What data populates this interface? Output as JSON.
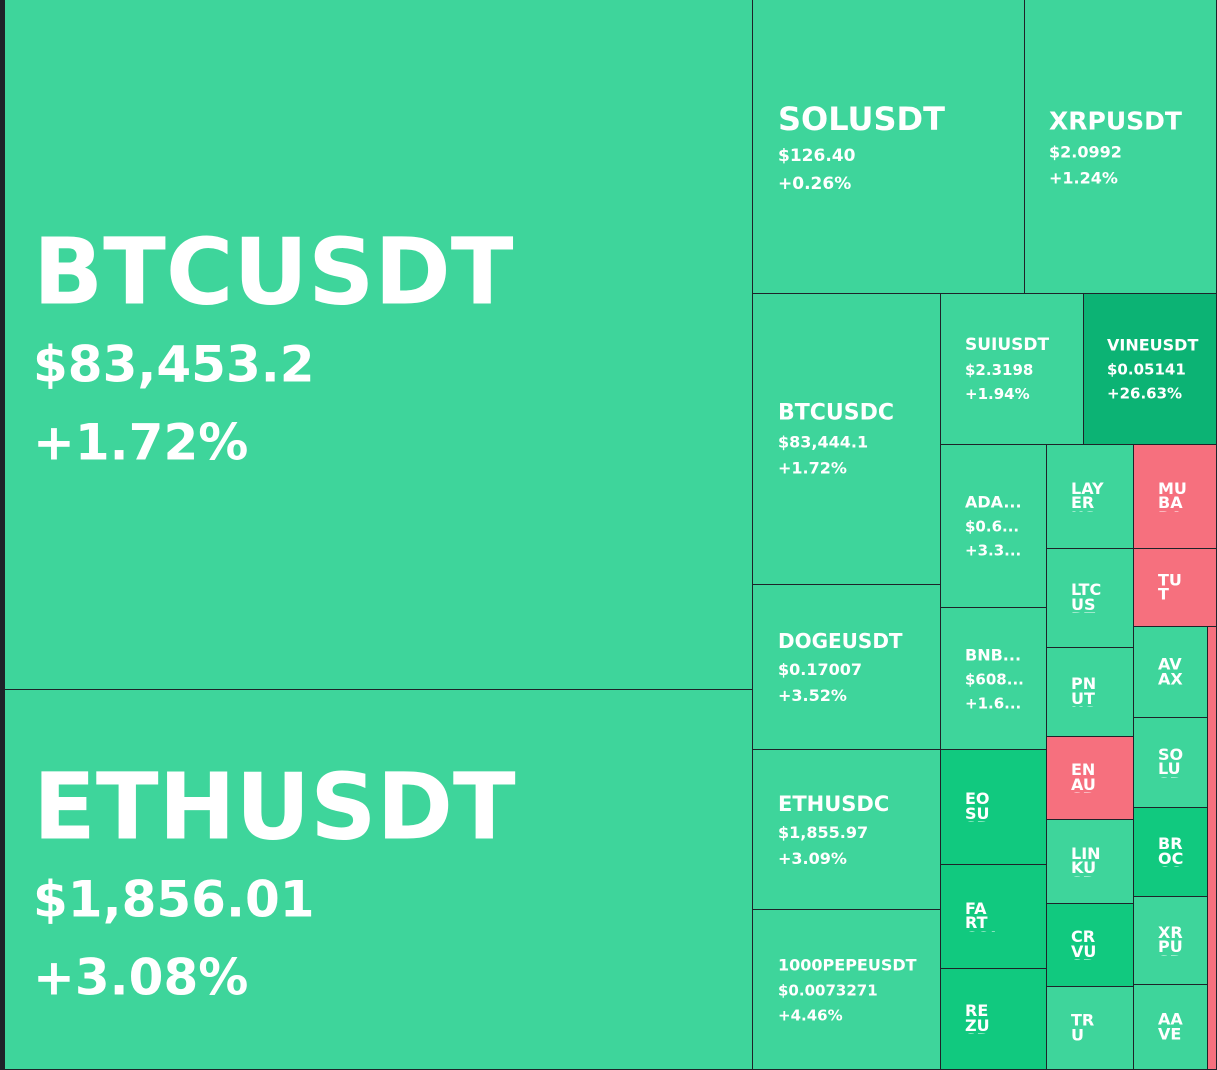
{
  "colors": {
    "up": "#3ed59b",
    "up_medium": "#11c97f",
    "up_strong": "#0cb374",
    "down": "#f6707e",
    "border": "#1e2329",
    "text": "#ffffff"
  },
  "tiles": [
    {
      "key": "btcusdt",
      "symbol": "BTCUSDT",
      "price": "$83,453.2",
      "change": "+1.72%",
      "color": "up"
    },
    {
      "key": "ethusdt",
      "symbol": "ETHUSDT",
      "price": "$1,856.01",
      "change": "+3.08%",
      "color": "up"
    },
    {
      "key": "solusdt",
      "symbol": "SOLUSDT",
      "price": "$126.40",
      "change": "+0.26%",
      "color": "up"
    },
    {
      "key": "xrpusdt",
      "symbol": "XRPUSDT",
      "price": "$2.0992",
      "change": "+1.24%",
      "color": "up"
    },
    {
      "key": "btcusdc",
      "symbol": "BTCUSDC",
      "price": "$83,444.1",
      "change": "+1.72%",
      "color": "up"
    },
    {
      "key": "suiusdt",
      "symbol": "SUIUSDT",
      "price": "$2.3198",
      "change": "+1.94%",
      "color": "up"
    },
    {
      "key": "vineusdt",
      "symbol": "VINEUSDT",
      "price": "$0.05141",
      "change": "+26.63%",
      "color": "up_strong"
    },
    {
      "key": "dogeusdt",
      "symbol": "DOGEUSDT",
      "price": "$0.17007",
      "change": "+3.52%",
      "color": "up"
    },
    {
      "key": "ethusdc",
      "symbol": "ETHUSDC",
      "price": "$1,855.97",
      "change": "+3.09%",
      "color": "up"
    },
    {
      "key": "1000pepeusdt",
      "symbol": "1000PEPEUSDT",
      "price": "$0.0073271",
      "change": "+4.46%",
      "color": "up"
    },
    {
      "key": "adausdt",
      "symbol": "ADA...",
      "price": "$0.6...",
      "change": "+3.3...",
      "color": "up"
    },
    {
      "key": "bnbusdt",
      "symbol": "BNB...",
      "price": "$608...",
      "change": "+1.6...",
      "color": "up"
    },
    {
      "key": "eosusdt",
      "symbol": "EOSUSDT",
      "color": "up_medium"
    },
    {
      "key": "fartcoinusdt",
      "symbol": "FARTCOINUSDT",
      "color": "up_medium"
    },
    {
      "key": "rezusdt",
      "symbol": "REZUSDT",
      "color": "up_medium"
    },
    {
      "key": "layerusdt",
      "symbol": "LAYERUSDT",
      "color": "up"
    },
    {
      "key": "ltcusdt",
      "symbol": "LTCUSDT",
      "color": "up"
    },
    {
      "key": "pnutusdt",
      "symbol": "PNUTUSDT",
      "color": "up"
    },
    {
      "key": "enausdt",
      "symbol": "ENAUSDT",
      "color": "down"
    },
    {
      "key": "linkusdt",
      "symbol": "LINKUSDT",
      "color": "up"
    },
    {
      "key": "crvusdt",
      "symbol": "CRVUSDT",
      "color": "up_medium"
    },
    {
      "key": "truusdt",
      "symbol": "TRU",
      "color": "up"
    },
    {
      "key": "mubarakusdt",
      "symbol": "MUBARAKUSDT",
      "color": "down"
    },
    {
      "key": "tutusdt",
      "symbol": "TUT",
      "color": "down"
    },
    {
      "key": "avaxusdt",
      "symbol": "AVAX",
      "color": "up"
    },
    {
      "key": "solusdc",
      "symbol": "SOLUSDC",
      "color": "up"
    },
    {
      "key": "brocusdt",
      "symbol": "BROCCOLI",
      "color": "up_medium"
    },
    {
      "key": "xrpusdc",
      "symbol": "XRPUSDC",
      "color": "up"
    },
    {
      "key": "aaveusdt",
      "symbol": "AAVE",
      "color": "up"
    },
    {
      "key": "redsliver",
      "symbol": "",
      "color": "down"
    }
  ]
}
